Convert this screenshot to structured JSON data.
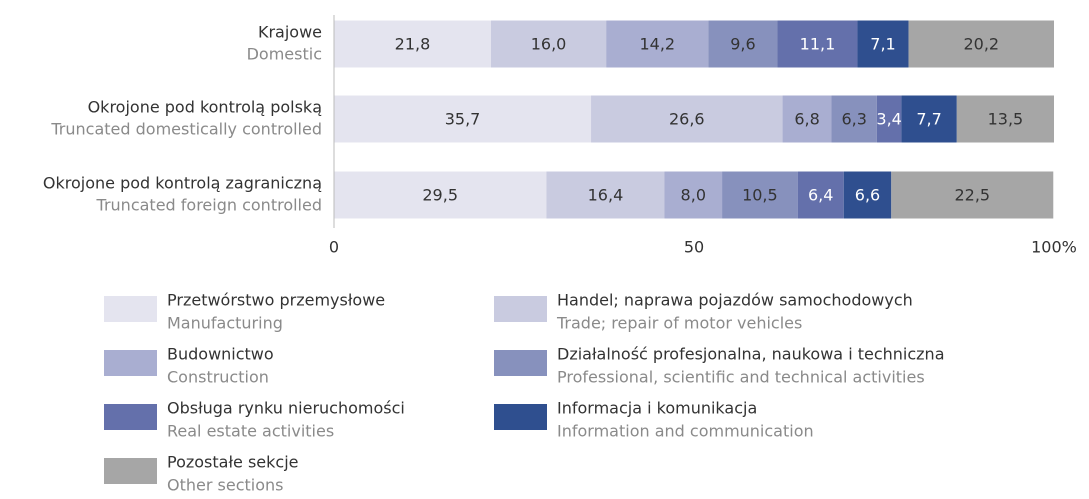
{
  "chart_data": {
    "type": "stacked_bar_horizontal",
    "categories": [
      "Krajowe",
      "Okrojone pod kontrolą polską",
      "Okrojone pod kontrolą zagraniczną"
    ],
    "categories_en": [
      "Domestic",
      "Truncated domestically controlled",
      "Truncated foreign controlled"
    ],
    "series": [
      {
        "name": "Przetwórstwo przemysłowe",
        "name_en": "Manufacturing",
        "color": "#e4e4ef",
        "label_color": "#333333",
        "values": [
          21.8,
          35.7,
          29.5
        ],
        "value_labels": [
          "21,8",
          "35,7",
          "29,5"
        ]
      },
      {
        "name": "Handel; naprawa pojazdów samochodowych",
        "name_en": "Trade; repair of motor vehicles",
        "color": "#c9cbe0",
        "label_color": "#333333",
        "values": [
          16.0,
          26.6,
          16.4
        ],
        "value_labels": [
          "16,0",
          "26,6",
          "16,4"
        ]
      },
      {
        "name": "Budownictwo",
        "name_en": "Construction",
        "color": "#a9aed1",
        "label_color": "#333333",
        "values": [
          14.2,
          6.8,
          8.0
        ],
        "value_labels": [
          "14,2",
          "6,8",
          "8,0"
        ]
      },
      {
        "name": "Działalność profesjonalna, naukowa i techniczna",
        "name_en": "Professional, scientific and  technical activities",
        "color": "#8791bd",
        "label_color": "#333333",
        "values": [
          9.6,
          6.3,
          10.5
        ],
        "value_labels": [
          "9,6",
          "6,3",
          "10,5"
        ]
      },
      {
        "name": "Obsługa rynku nieruchomości",
        "name_en": "Real estate activities",
        "color": "#6470ab",
        "label_color": "#ffffff",
        "values": [
          11.1,
          3.4,
          6.4
        ],
        "value_labels": [
          "11,1",
          "3,4",
          "6,4"
        ]
      },
      {
        "name": "Informacja i komunikacja",
        "name_en": "Information and communication",
        "color": "#2f4f8f",
        "label_color": "#ffffff",
        "values": [
          7.1,
          7.7,
          6.6
        ],
        "value_labels": [
          "7,1",
          "7,7",
          "6,6"
        ]
      },
      {
        "name": "Pozostałe sekcje",
        "name_en": "Other sections",
        "color": "#a6a6a6",
        "label_color": "#333333",
        "values": [
          20.2,
          13.5,
          22.5
        ],
        "value_labels": [
          "20,2",
          "13,5",
          "22,5"
        ]
      }
    ],
    "xlim": [
      0,
      100
    ],
    "xticks": [
      0,
      50,
      {
        "value": 100,
        "label": "100%"
      }
    ]
  }
}
